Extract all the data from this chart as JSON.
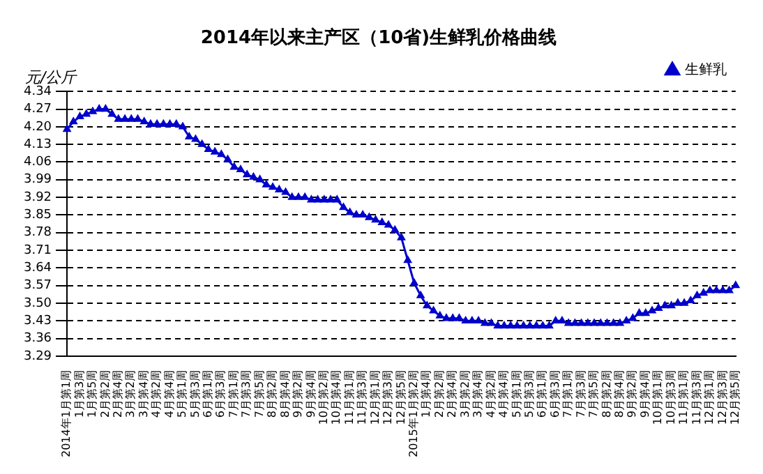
{
  "chart_data": {
    "type": "line",
    "title": "2014年以来主产区（10省)生鲜乳价格曲线",
    "ylabel": "元/公斤",
    "categories": [
      "2014年1月第1周",
      null,
      "1月第3周",
      null,
      "1月第5周",
      null,
      "2月第2周",
      null,
      "2月第4周",
      null,
      "3月第2周",
      null,
      "3月第4周",
      null,
      "4月第2周",
      null,
      "4月第4周",
      null,
      "5月第1周",
      null,
      "5月第3周",
      null,
      "6月第1周",
      null,
      "6月第3周",
      null,
      "7月第1周",
      null,
      "7月第3周",
      null,
      "7月第5周",
      null,
      "8月第2周",
      null,
      "8月第4周",
      null,
      "9月第2周",
      null,
      "9月第4周",
      null,
      "10月第2周",
      null,
      "10月第4周",
      null,
      "11月第1周",
      null,
      "11月第3周",
      null,
      "12月第1周",
      null,
      "12月第3周",
      null,
      "12月第5周",
      null,
      "2015年1月第2周",
      null,
      "1月第4周",
      null,
      "2月第2周",
      null,
      "2月第4周",
      null,
      "3月第2周",
      null,
      "3月第4周",
      null,
      "4月第2周",
      null,
      "4月第4周",
      null,
      "5月第1周",
      null,
      "5月第3周",
      null,
      "6月第1周",
      null,
      "6月第3周",
      null,
      "7月第1周",
      null,
      "7月第3周",
      null,
      "7月第5周",
      null,
      "8月第2周",
      null,
      "8月第4周",
      null,
      "9月第2周",
      null,
      "9月第4周",
      null,
      "10月第1周",
      null,
      "10月第3周",
      null,
      "11月第1周",
      null,
      "11月第3周",
      null,
      "12月第1周",
      null,
      "12月第3周",
      null,
      "12月第5周"
    ],
    "series": [
      {
        "name": "生鲜乳",
        "color": "#0000cc",
        "values": [
          4.19,
          4.22,
          4.24,
          4.25,
          4.26,
          4.27,
          4.27,
          4.25,
          4.23,
          4.23,
          4.23,
          4.23,
          4.22,
          4.21,
          4.21,
          4.21,
          4.21,
          4.21,
          4.2,
          4.16,
          4.15,
          4.13,
          4.11,
          4.1,
          4.09,
          4.07,
          4.04,
          4.03,
          4.01,
          4.0,
          3.99,
          3.97,
          3.96,
          3.95,
          3.94,
          3.92,
          3.92,
          3.92,
          3.91,
          3.91,
          3.91,
          3.91,
          3.91,
          3.88,
          3.86,
          3.85,
          3.85,
          3.84,
          3.83,
          3.82,
          3.81,
          3.79,
          3.76,
          3.67,
          3.58,
          3.53,
          3.49,
          3.47,
          3.45,
          3.44,
          3.44,
          3.44,
          3.43,
          3.43,
          3.43,
          3.42,
          3.42,
          3.41,
          3.41,
          3.41,
          3.41,
          3.41,
          3.41,
          3.41,
          3.41,
          3.41,
          3.43,
          3.43,
          3.42,
          3.42,
          3.42,
          3.42,
          3.42,
          3.42,
          3.42,
          3.42,
          3.42,
          3.43,
          3.44,
          3.46,
          3.46,
          3.47,
          3.48,
          3.49,
          3.49,
          3.5,
          3.5,
          3.51,
          3.53,
          3.54,
          3.55,
          3.55,
          3.55,
          3.55,
          3.57
        ]
      }
    ],
    "ylim": [
      3.29,
      4.34
    ],
    "yticks": [
      3.29,
      3.36,
      3.43,
      {
        "value": 3.5,
        "label": "3.50"
      },
      3.57,
      3.64,
      3.71,
      3.78,
      3.85,
      3.92,
      3.99,
      4.06,
      4.13,
      {
        "value": 4.2,
        "label": "4.20"
      },
      4.27,
      4.34
    ],
    "grid": "y",
    "legend": "top right",
    "marker": "triangle",
    "line_style": "solid"
  }
}
